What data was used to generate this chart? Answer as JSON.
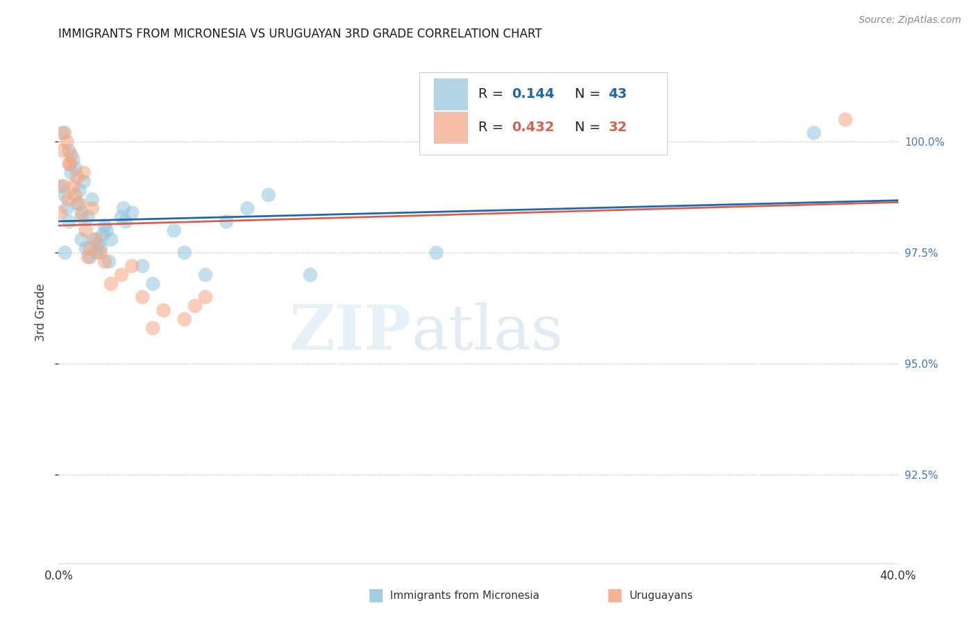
{
  "title": "IMMIGRANTS FROM MICRONESIA VS URUGUAYAN 3RD GRADE CORRELATION CHART",
  "source": "Source: ZipAtlas.com",
  "ylabel": "3rd Grade",
  "y_ticks": [
    92.5,
    95.0,
    97.5,
    100.0
  ],
  "y_tick_labels": [
    "92.5%",
    "95.0%",
    "97.5%",
    "100.0%"
  ],
  "x_lim": [
    0.0,
    40.0
  ],
  "y_lim": [
    90.5,
    101.8
  ],
  "blue_color": "#92c5de",
  "pink_color": "#f4a582",
  "blue_line_color": "#2166ac",
  "pink_line_color": "#d6604d",
  "blue_R": "0.144",
  "blue_N": "43",
  "pink_R": "0.432",
  "pink_N": "32",
  "watermark_zip": "ZIP",
  "watermark_atlas": "atlas",
  "background_color": "#ffffff",
  "blue_scatter_x": [
    0.1,
    0.2,
    0.3,
    0.3,
    0.4,
    0.5,
    0.5,
    0.6,
    0.7,
    0.8,
    0.9,
    1.0,
    1.1,
    1.1,
    1.2,
    1.3,
    1.4,
    1.5,
    1.6,
    1.7,
    1.8,
    1.9,
    2.0,
    2.1,
    2.2,
    2.3,
    2.4,
    2.5,
    3.0,
    3.1,
    3.2,
    3.5,
    4.0,
    4.5,
    5.5,
    6.0,
    7.0,
    8.0,
    9.0,
    10.0,
    12.0,
    18.0,
    36.0
  ],
  "blue_scatter_y": [
    99.0,
    100.2,
    98.8,
    97.5,
    98.5,
    99.8,
    98.2,
    99.3,
    99.6,
    99.4,
    98.6,
    98.9,
    98.4,
    97.8,
    99.1,
    97.6,
    98.3,
    97.4,
    98.7,
    97.8,
    97.5,
    97.7,
    97.6,
    97.9,
    98.1,
    98.0,
    97.3,
    97.8,
    98.3,
    98.5,
    98.2,
    98.4,
    97.2,
    96.8,
    98.0,
    97.5,
    97.0,
    98.2,
    98.5,
    98.8,
    97.0,
    97.5,
    100.2
  ],
  "pink_scatter_x": [
    0.1,
    0.2,
    0.3,
    0.4,
    0.5,
    0.6,
    0.7,
    0.8,
    0.9,
    1.0,
    1.1,
    1.2,
    1.3,
    1.5,
    1.6,
    1.8,
    2.0,
    2.2,
    2.5,
    3.0,
    3.5,
    4.0,
    4.5,
    5.0,
    6.0,
    6.5,
    7.0,
    0.25,
    0.45,
    0.55,
    1.4,
    37.5
  ],
  "pink_scatter_y": [
    98.4,
    99.8,
    100.2,
    100.0,
    99.5,
    99.7,
    99.0,
    98.8,
    99.2,
    98.6,
    98.3,
    99.3,
    98.0,
    97.6,
    98.5,
    97.8,
    97.5,
    97.3,
    96.8,
    97.0,
    97.2,
    96.5,
    95.8,
    96.2,
    96.0,
    96.3,
    96.5,
    99.0,
    98.7,
    99.5,
    97.4,
    100.5
  ]
}
